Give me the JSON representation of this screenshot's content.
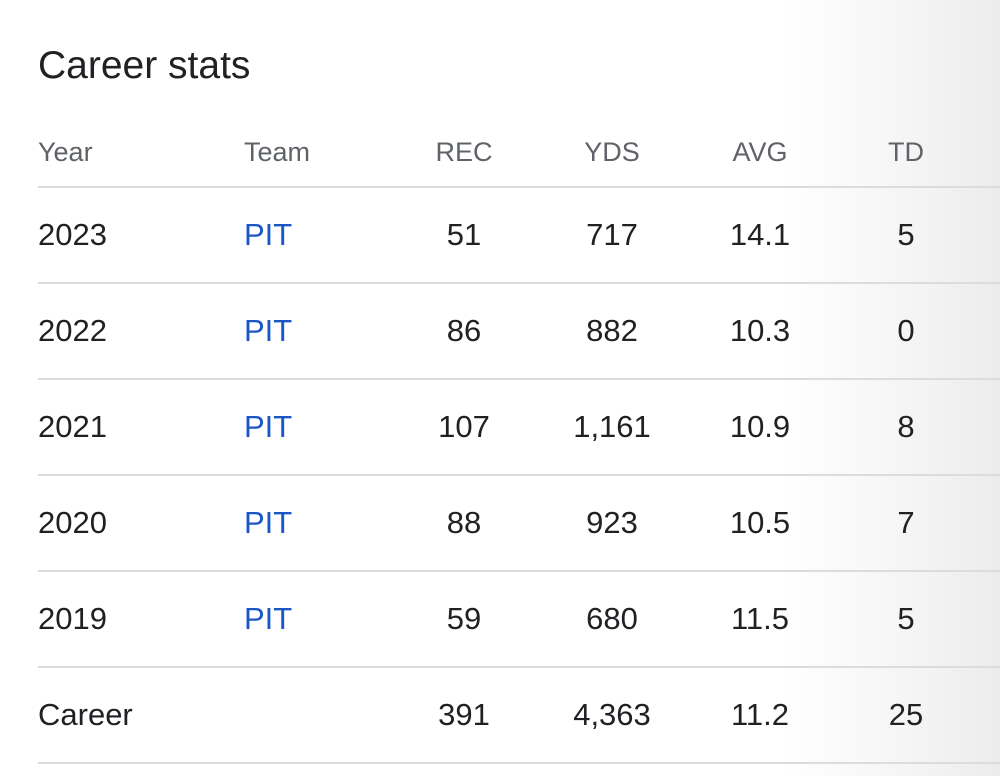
{
  "title": "Career stats",
  "columns": {
    "year": "Year",
    "team": "Team",
    "rec": "REC",
    "yds": "YDS",
    "avg": "AVG",
    "td": "TD"
  },
  "rows": [
    {
      "year": "2023",
      "team": "PIT",
      "rec": "51",
      "yds": "717",
      "avg": "14.1",
      "td": "5"
    },
    {
      "year": "2022",
      "team": "PIT",
      "rec": "86",
      "yds": "882",
      "avg": "10.3",
      "td": "0"
    },
    {
      "year": "2021",
      "team": "PIT",
      "rec": "107",
      "yds": "1,161",
      "avg": "10.9",
      "td": "8"
    },
    {
      "year": "2020",
      "team": "PIT",
      "rec": "88",
      "yds": "923",
      "avg": "10.5",
      "td": "7"
    },
    {
      "year": "2019",
      "team": "PIT",
      "rec": "59",
      "yds": "680",
      "avg": "11.5",
      "td": "5"
    }
  ],
  "career": {
    "label": "Career",
    "rec": "391",
    "yds": "4,363",
    "avg": "11.2",
    "td": "25"
  },
  "colors": {
    "link": "#1a56c4",
    "text": "#202124",
    "header_text": "#5f6368",
    "divider": "#dadce0"
  }
}
